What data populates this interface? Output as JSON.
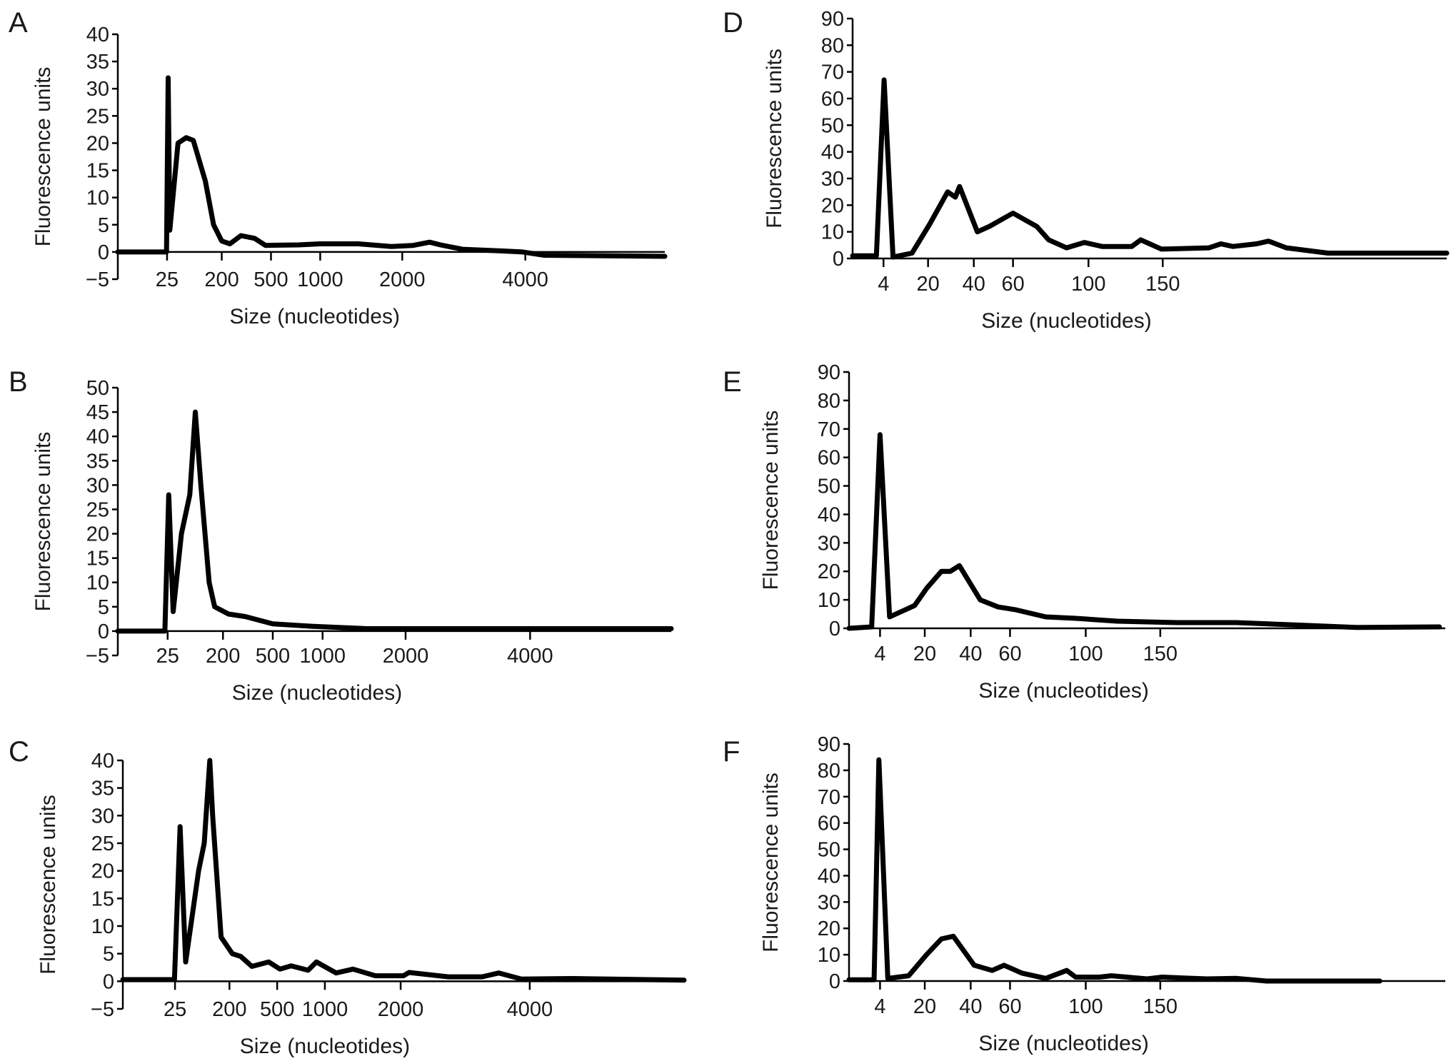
{
  "chart_data": [
    {
      "panel": "A",
      "type": "line",
      "xlabel": "Size (nucleotides)",
      "ylabel": "Fluorescence units",
      "ylim": [
        -5,
        40
      ],
      "yticks": [
        "-5",
        "0",
        "5",
        "10",
        "15",
        "20",
        "25",
        "30",
        "35",
        "40"
      ],
      "ytick_values": [
        -5,
        0,
        5,
        10,
        15,
        20,
        25,
        30,
        35,
        40
      ],
      "x_scale": "migration position 0-100 (non-linear size axis)",
      "xticks": [
        {
          "label": "25",
          "pos": 9
        },
        {
          "label": "200",
          "pos": 19
        },
        {
          "label": "500",
          "pos": 28
        },
        {
          "label": "1000",
          "pos": 37
        },
        {
          "label": "2000",
          "pos": 52
        },
        {
          "label": "4000",
          "pos": 74.5
        }
      ],
      "points": [
        [
          0,
          0
        ],
        [
          8.9,
          0
        ],
        [
          9.2,
          32
        ],
        [
          9.5,
          4
        ],
        [
          11,
          20
        ],
        [
          12.5,
          21
        ],
        [
          13.8,
          20.5
        ],
        [
          16,
          13
        ],
        [
          17.5,
          5
        ],
        [
          19,
          2
        ],
        [
          20.5,
          1.5
        ],
        [
          22.5,
          3
        ],
        [
          25,
          2.5
        ],
        [
          27,
          1.2
        ],
        [
          33,
          1.3
        ],
        [
          37,
          1.5
        ],
        [
          44,
          1.5
        ],
        [
          50,
          1
        ],
        [
          54,
          1.2
        ],
        [
          57,
          1.8
        ],
        [
          59,
          1.3
        ],
        [
          63,
          0.5
        ],
        [
          70,
          0.2
        ],
        [
          74,
          0
        ],
        [
          78,
          -0.6
        ],
        [
          100,
          -0.8
        ]
      ]
    },
    {
      "panel": "B",
      "type": "line",
      "xlabel": "Size (nucleotides)",
      "ylabel": "Fluorescence units",
      "ylim": [
        -5,
        50
      ],
      "yticks": [
        "-5",
        "0",
        "5",
        "10",
        "15",
        "20",
        "25",
        "30",
        "35",
        "40",
        "45",
        "50"
      ],
      "ytick_values": [
        -5,
        0,
        5,
        10,
        15,
        20,
        25,
        30,
        35,
        40,
        45,
        50
      ],
      "x_scale": "migration position 0-100 (non-linear size axis)",
      "xticks": [
        {
          "label": "25",
          "pos": 9
        },
        {
          "label": "200",
          "pos": 19
        },
        {
          "label": "500",
          "pos": 28
        },
        {
          "label": "1000",
          "pos": 37
        },
        {
          "label": "2000",
          "pos": 52
        },
        {
          "label": "4000",
          "pos": 74.5
        }
      ],
      "points": [
        [
          0,
          0
        ],
        [
          8.5,
          0
        ],
        [
          9.2,
          28
        ],
        [
          10,
          4
        ],
        [
          11.5,
          20
        ],
        [
          13,
          28
        ],
        [
          14,
          45
        ],
        [
          15,
          30
        ],
        [
          16.5,
          10
        ],
        [
          17.5,
          5
        ],
        [
          20,
          3.5
        ],
        [
          23,
          3
        ],
        [
          28,
          1.5
        ],
        [
          35,
          1
        ],
        [
          45,
          0.5
        ],
        [
          100,
          0.5
        ]
      ]
    },
    {
      "panel": "C",
      "type": "line",
      "xlabel": "Size (nucleotides)",
      "ylabel": "Fluorescence units",
      "ylim": [
        -5,
        40
      ],
      "yticks": [
        "-5",
        "0",
        "5",
        "10",
        "15",
        "20",
        "25",
        "30",
        "35",
        "40"
      ],
      "ytick_values": [
        -5,
        0,
        5,
        10,
        15,
        20,
        25,
        30,
        35,
        40
      ],
      "x_scale": "migration position 0-100 (non-linear size axis)",
      "xticks": [
        {
          "label": "25",
          "pos": 9.3
        },
        {
          "label": "200",
          "pos": 19
        },
        {
          "label": "500",
          "pos": 27.5
        },
        {
          "label": "1000",
          "pos": 36
        },
        {
          "label": "2000",
          "pos": 49.5
        },
        {
          "label": "4000",
          "pos": 72.5
        }
      ],
      "points": [
        [
          0,
          0.3
        ],
        [
          9.2,
          0.3
        ],
        [
          10.2,
          28
        ],
        [
          11.2,
          3.5
        ],
        [
          13.5,
          20
        ],
        [
          14.5,
          25
        ],
        [
          15.5,
          40
        ],
        [
          16,
          30
        ],
        [
          17.5,
          8
        ],
        [
          19.5,
          5
        ],
        [
          21,
          4.5
        ],
        [
          23,
          2.7
        ],
        [
          26,
          3.5
        ],
        [
          28,
          2.2
        ],
        [
          30,
          2.8
        ],
        [
          33,
          2
        ],
        [
          34.5,
          3.5
        ],
        [
          38,
          1.5
        ],
        [
          41,
          2.2
        ],
        [
          45,
          1
        ],
        [
          50,
          1
        ],
        [
          51,
          1.6
        ],
        [
          58,
          0.8
        ],
        [
          64,
          0.8
        ],
        [
          67,
          1.5
        ],
        [
          71,
          0.4
        ],
        [
          80,
          0.5
        ],
        [
          100,
          0.2
        ]
      ]
    },
    {
      "panel": "D",
      "type": "line",
      "xlabel": "Size (nucleotides)",
      "ylabel": "Fluorescence units",
      "ylim": [
        0,
        90
      ],
      "yticks": [
        "0",
        "10",
        "20",
        "30",
        "40",
        "50",
        "60",
        "70",
        "80",
        "90"
      ],
      "ytick_values": [
        0,
        10,
        20,
        30,
        40,
        50,
        60,
        70,
        80,
        90
      ],
      "x_scale": "migration position 0-100 (non-linear size axis)",
      "xticks": [
        {
          "label": "4",
          "pos": 5.2
        },
        {
          "label": "20",
          "pos": 12.7
        },
        {
          "label": "40",
          "pos": 20.4
        },
        {
          "label": "60",
          "pos": 27
        },
        {
          "label": "100",
          "pos": 39.7
        },
        {
          "label": "150",
          "pos": 52.2
        }
      ],
      "points": [
        [
          0,
          1
        ],
        [
          4,
          1
        ],
        [
          5.3,
          67
        ],
        [
          6.8,
          0.5
        ],
        [
          10,
          2
        ],
        [
          13,
          13
        ],
        [
          16,
          25
        ],
        [
          17.3,
          23
        ],
        [
          18,
          27
        ],
        [
          21,
          10
        ],
        [
          23,
          12
        ],
        [
          27,
          17
        ],
        [
          31,
          12
        ],
        [
          33,
          7
        ],
        [
          36,
          4
        ],
        [
          39,
          6
        ],
        [
          42,
          4.5
        ],
        [
          47,
          4.5
        ],
        [
          48.5,
          7
        ],
        [
          52,
          3.5
        ],
        [
          60,
          4
        ],
        [
          62,
          5.5
        ],
        [
          64,
          4.5
        ],
        [
          68,
          5.5
        ],
        [
          70,
          6.5
        ],
        [
          73,
          4
        ],
        [
          80,
          2
        ],
        [
          100,
          2
        ]
      ]
    },
    {
      "panel": "E",
      "type": "line",
      "xlabel": "Size (nucleotides)",
      "ylabel": "Fluorescence units",
      "ylim": [
        0,
        90
      ],
      "yticks": [
        "0",
        "10",
        "20",
        "30",
        "40",
        "50",
        "60",
        "70",
        "80",
        "90"
      ],
      "ytick_values": [
        0,
        10,
        20,
        30,
        40,
        50,
        60,
        70,
        80,
        90
      ],
      "x_scale": "migration position 0-100 (non-linear size axis)",
      "xticks": [
        {
          "label": "4",
          "pos": 5.2
        },
        {
          "label": "20",
          "pos": 12.7
        },
        {
          "label": "40",
          "pos": 20.4
        },
        {
          "label": "60",
          "pos": 27
        },
        {
          "label": "100",
          "pos": 39.7
        },
        {
          "label": "150",
          "pos": 52.2
        }
      ],
      "points": [
        [
          0,
          0
        ],
        [
          3.8,
          0.5
        ],
        [
          5.2,
          68
        ],
        [
          6.8,
          4
        ],
        [
          11,
          8
        ],
        [
          13,
          14
        ],
        [
          15.5,
          20
        ],
        [
          17,
          20
        ],
        [
          18.5,
          22
        ],
        [
          22,
          10
        ],
        [
          25,
          7.5
        ],
        [
          28,
          6.5
        ],
        [
          33,
          4
        ],
        [
          38,
          3.5
        ],
        [
          45,
          2.5
        ],
        [
          55,
          2
        ],
        [
          65,
          2
        ],
        [
          77,
          1
        ],
        [
          85,
          0.3
        ],
        [
          99,
          0.5
        ]
      ]
    },
    {
      "panel": "F",
      "type": "line",
      "xlabel": "Size (nucleotides)",
      "ylabel": "Fluorescence units",
      "ylim": [
        0,
        90
      ],
      "yticks": [
        "0",
        "10",
        "20",
        "30",
        "40",
        "50",
        "60",
        "70",
        "80",
        "90"
      ],
      "ytick_values": [
        0,
        10,
        20,
        30,
        40,
        50,
        60,
        70,
        80,
        90
      ],
      "x_scale": "migration position 0-100 (non-linear size axis)",
      "xticks": [
        {
          "label": "4",
          "pos": 5.2
        },
        {
          "label": "20",
          "pos": 12.7
        },
        {
          "label": "40",
          "pos": 20.4
        },
        {
          "label": "60",
          "pos": 27
        },
        {
          "label": "100",
          "pos": 39.7
        },
        {
          "label": "150",
          "pos": 52.2
        }
      ],
      "points": [
        [
          0,
          0.5
        ],
        [
          4.2,
          0.5
        ],
        [
          5,
          84
        ],
        [
          6.5,
          1
        ],
        [
          10,
          2
        ],
        [
          13,
          10
        ],
        [
          15.5,
          16
        ],
        [
          17.5,
          17
        ],
        [
          21,
          6
        ],
        [
          24,
          4
        ],
        [
          26,
          6
        ],
        [
          29,
          3
        ],
        [
          33,
          1
        ],
        [
          36.5,
          4
        ],
        [
          38,
          1.5
        ],
        [
          42,
          1.5
        ],
        [
          44,
          2
        ],
        [
          50,
          0.8
        ],
        [
          52.5,
          1.5
        ],
        [
          60,
          0.8
        ],
        [
          65,
          1
        ],
        [
          70,
          0
        ],
        [
          89,
          0
        ]
      ]
    }
  ]
}
